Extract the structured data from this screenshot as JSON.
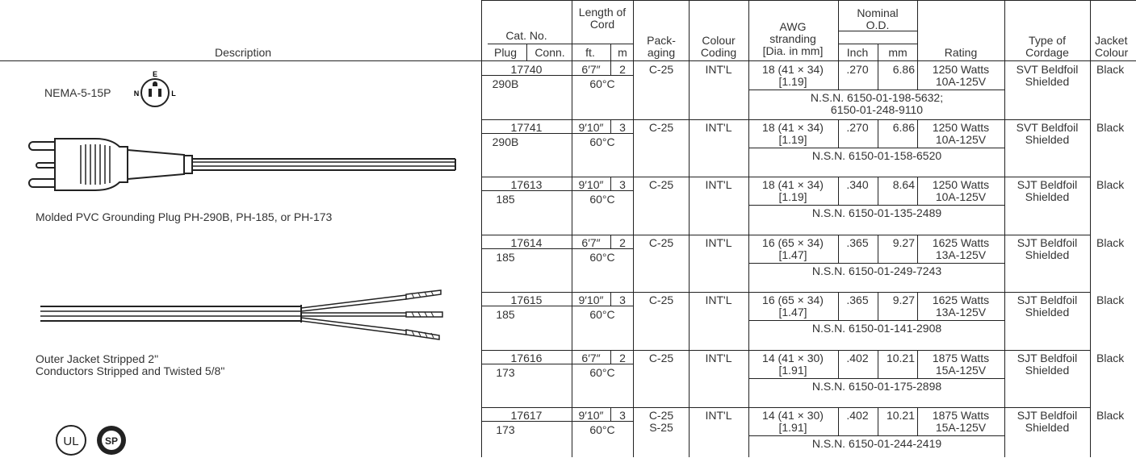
{
  "headers": {
    "description": "Description",
    "cat_no": "Cat. No.",
    "plug": "Plug",
    "conn": "Conn.",
    "length_of_cord": "Length of\nCord",
    "ft": "ft.",
    "m": "m",
    "packaging": "Pack-\naging",
    "colour_coding": "Colour\nCoding",
    "awg_stranding": "AWG\nstranding\n[Dia. in mm]",
    "nominal_od": "Nominal\nO.D.",
    "inch": "Inch",
    "mm": "mm",
    "rating": "Rating",
    "type_of_cordage": "Type of\nCordage",
    "jacket_colour": "Jacket\nColour"
  },
  "left_panel": {
    "nema_label": "NEMA-5-15P",
    "plug_face_letters": [
      "N",
      "E",
      "L"
    ],
    "plug_caption": "Molded PVC Grounding Plug PH-290B, PH-185, or PH-173",
    "stripped_caption": "Outer Jacket Stripped 2\"\nConductors Stripped and Twisted 5/8\"",
    "cert_marks": [
      "UL",
      "SP"
    ]
  },
  "rows": [
    {
      "cat": "17740",
      "plug": "290B",
      "ft": "6′7″",
      "m": "2",
      "temp": "60°C",
      "pack": "C-25",
      "colour": "INT'L",
      "awg": "18 (41 × 34)\n[1.19]",
      "inch": ".270",
      "mm": "6.86",
      "rating": "1250 Watts\n10A-125V",
      "type": "SVT Beldfoil\nShielded",
      "jacket": "Black",
      "nsn": "N.S.N. 6150-01-198-5632;\n6150-01-248-9110"
    },
    {
      "cat": "17741",
      "plug": "290B",
      "ft": "9′10″",
      "m": "3",
      "temp": "60°C",
      "pack": "C-25",
      "colour": "INT'L",
      "awg": "18 (41 × 34)\n[1.19]",
      "inch": ".270",
      "mm": "6.86",
      "rating": "1250 Watts\n10A-125V",
      "type": "SVT Beldfoil\nShielded",
      "jacket": "Black",
      "nsn": "N.S.N. 6150-01-158-6520"
    },
    {
      "cat": "17613",
      "plug": "185",
      "ft": "9′10″",
      "m": "3",
      "temp": "60°C",
      "pack": "C-25",
      "colour": "INT'L",
      "awg": "18 (41 × 34)\n[1.19]",
      "inch": ".340",
      "mm": "8.64",
      "rating": "1250 Watts\n10A-125V",
      "type": "SJT Beldfoil\nShielded",
      "jacket": "Black",
      "nsn": "N.S.N. 6150-01-135-2489"
    },
    {
      "cat": "17614",
      "plug": "185",
      "ft": "6′7″",
      "m": "2",
      "temp": "60°C",
      "pack": "C-25",
      "colour": "INT'L",
      "awg": "16 (65 × 34)\n[1.47]",
      "inch": ".365",
      "mm": "9.27",
      "rating": "1625 Watts\n13A-125V",
      "type": "SJT Beldfoil\nShielded",
      "jacket": "Black",
      "nsn": "N.S.N. 6150-01-249-7243"
    },
    {
      "cat": "17615",
      "plug": "185",
      "ft": "9′10″",
      "m": "3",
      "temp": "60°C",
      "pack": "C-25",
      "colour": "INT'L",
      "awg": "16 (65 × 34)\n[1.47]",
      "inch": ".365",
      "mm": "9.27",
      "rating": "1625 Watts\n13A-125V",
      "type": "SJT Beldfoil\nShielded",
      "jacket": "Black",
      "nsn": "N.S.N. 6150-01-141-2908"
    },
    {
      "cat": "17616",
      "plug": "173",
      "ft": "6′7″",
      "m": "2",
      "temp": "60°C",
      "pack": "C-25",
      "colour": "INT'L",
      "awg": "14 (41 × 30)\n[1.91]",
      "inch": ".402",
      "mm": "10.21",
      "rating": "1875 Watts\n15A-125V",
      "type": "SJT Beldfoil\nShielded",
      "jacket": "Black",
      "nsn": "N.S.N. 6150-01-175-2898"
    },
    {
      "cat": "17617",
      "plug": "173",
      "ft": "9′10″",
      "m": "3",
      "temp": "60°C",
      "pack": "C-25\nS-25",
      "colour": "INT'L",
      "awg": "14 (41 × 30)\n[1.91]",
      "inch": ".402",
      "mm": "10.21",
      "rating": "1875 Watts\n15A-125V",
      "type": "SJT Beldfoil\nShielded",
      "jacket": "Black",
      "nsn": "N.S.N. 6150-01-244-2419"
    }
  ]
}
